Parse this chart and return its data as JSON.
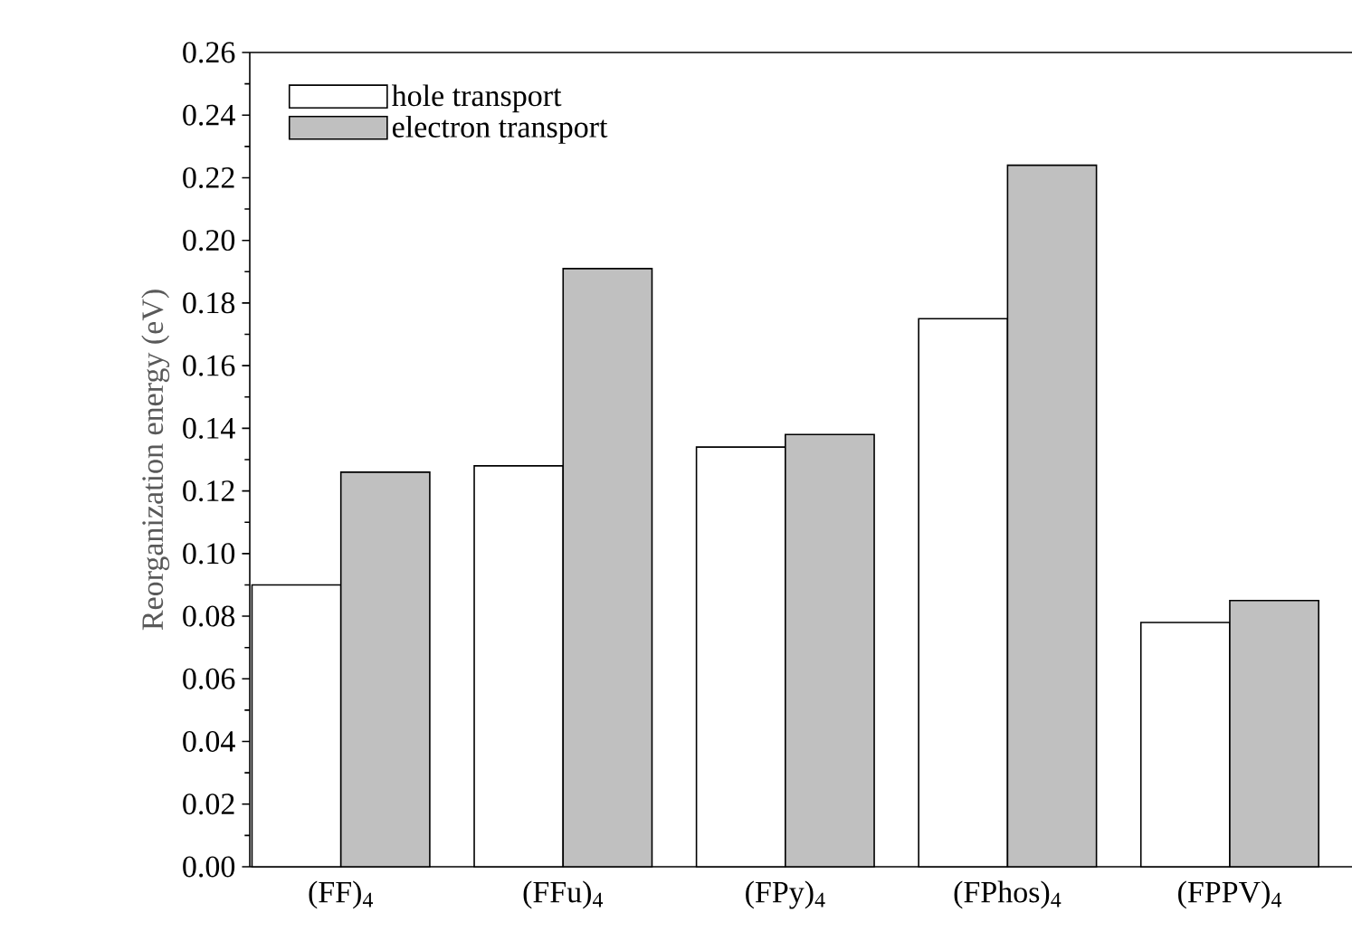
{
  "chart_data": {
    "type": "bar",
    "ylabel": "Reorganization energy (eV)",
    "categories": [
      "(FF)$_{4}$",
      "(FFu)$_{4}$",
      "(FPy)$_{4}$",
      "(FPhos)$_{4}$",
      "(FPPV)$_{4}$"
    ],
    "series": [
      {
        "name": "hole transport",
        "color": "#ffffff",
        "values": [
          0.09,
          0.128,
          0.134,
          0.175,
          0.078
        ]
      },
      {
        "name": "electron transport",
        "color": "#c0c0c0",
        "values": [
          0.126,
          0.191,
          0.138,
          0.224,
          0.085
        ]
      }
    ],
    "ylim": [
      0,
      0.26
    ],
    "yticks": [
      {
        "value": 0,
        "label": "0.00"
      },
      0.02,
      0.04,
      0.06,
      0.08,
      {
        "value": 0.1,
        "label": "0.10"
      },
      0.12,
      0.14,
      0.16,
      0.18,
      {
        "value": 0.2,
        "label": "0.20"
      },
      0.22,
      0.24,
      0.26
    ],
    "legend": "top left",
    "grid": false
  }
}
